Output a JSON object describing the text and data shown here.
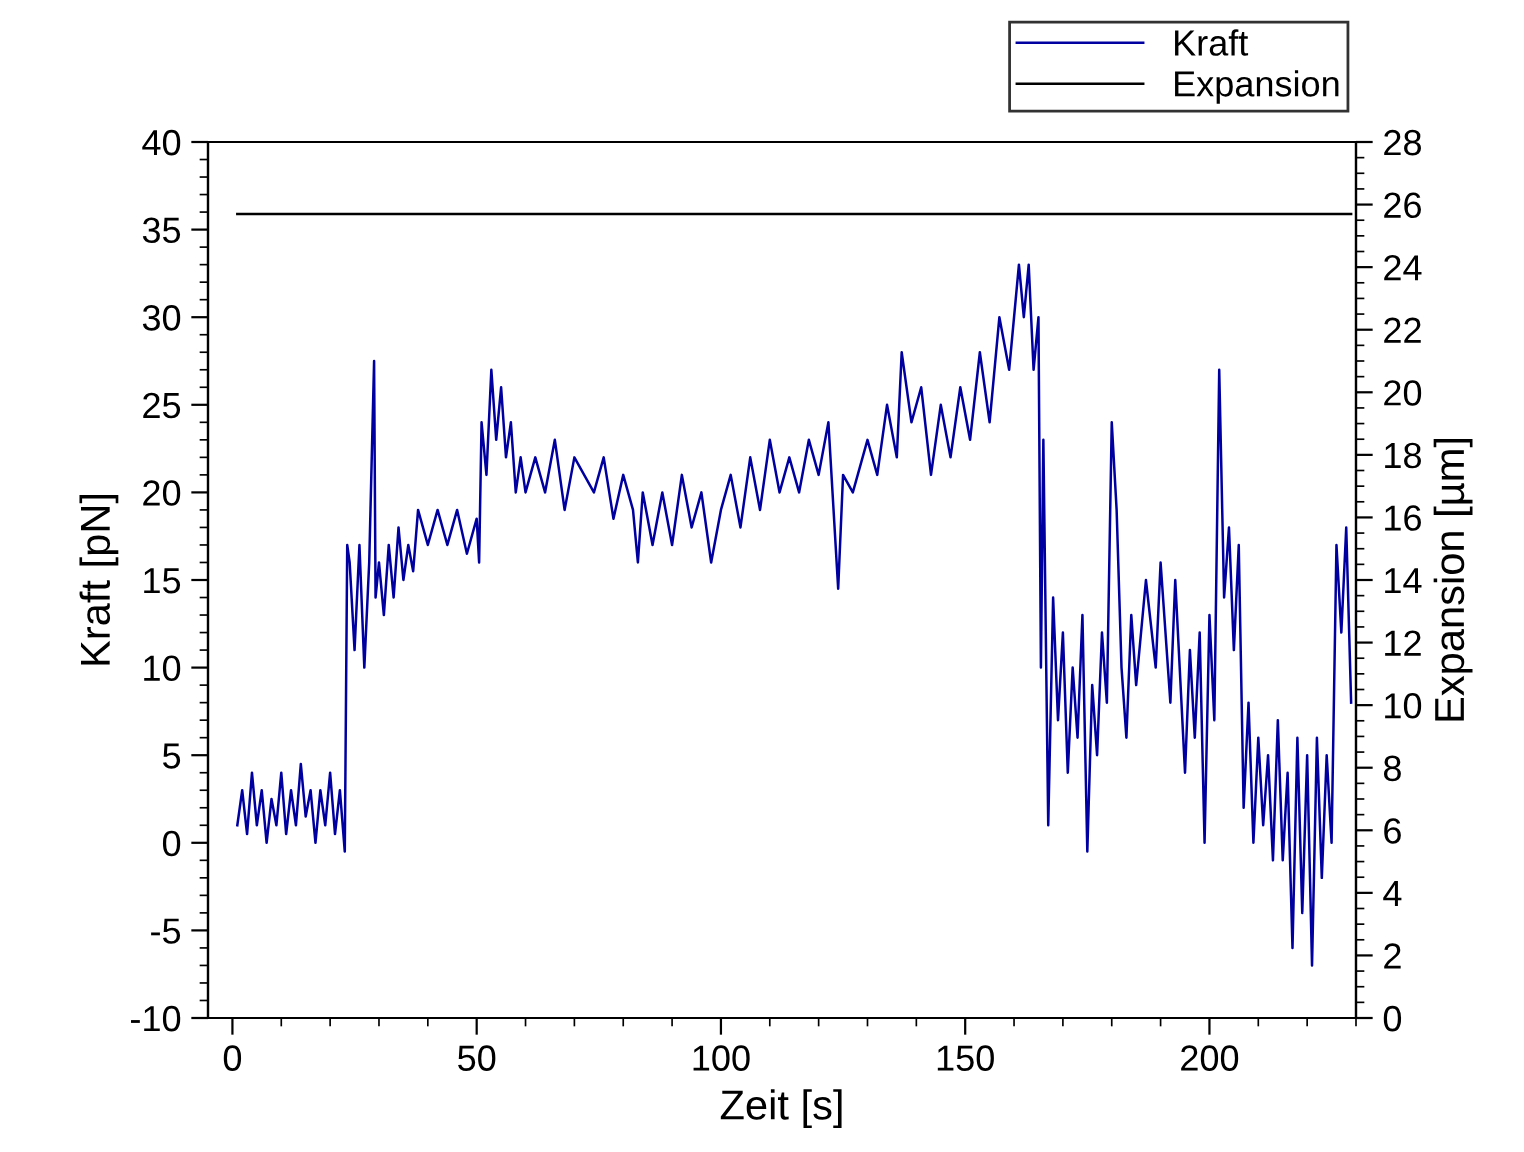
{
  "chart_data": {
    "type": "line",
    "xlabel": "Zeit [s]",
    "ylabel": "Kraft [pN]",
    "y2label": "Expansion [µm]",
    "xlim": [
      -5,
      230
    ],
    "xticks": [
      0,
      50,
      100,
      150,
      200
    ],
    "ylim": [
      -10,
      40
    ],
    "yticks": [
      -10,
      -5,
      0,
      5,
      10,
      15,
      20,
      25,
      30,
      35,
      40
    ],
    "y2lim": [
      0,
      28
    ],
    "y2ticks": [
      0,
      2,
      4,
      6,
      8,
      10,
      12,
      14,
      16,
      18,
      20,
      22,
      24,
      26,
      28
    ],
    "legend": "top right",
    "grid": false,
    "series": [
      {
        "name": "Kraft",
        "color": "#0000a0",
        "x": [
          1,
          2,
          3,
          4,
          5,
          6,
          7,
          8,
          9,
          10,
          11,
          12,
          13,
          14,
          15,
          16,
          17,
          18,
          19,
          20,
          21,
          22,
          23,
          23.5,
          24,
          25,
          26,
          27,
          28,
          29,
          29.3,
          30,
          31,
          32,
          33,
          34,
          35,
          36,
          37,
          38,
          40,
          42,
          44,
          46,
          48,
          50,
          50.5,
          51,
          52,
          53,
          54,
          55,
          56,
          57,
          58,
          59,
          60,
          62,
          64,
          66,
          68,
          70,
          72,
          74,
          76,
          78,
          80,
          82,
          83,
          84,
          86,
          88,
          90,
          92,
          94,
          96,
          98,
          100,
          102,
          104,
          106,
          108,
          110,
          112,
          114,
          116,
          118,
          120,
          122,
          124,
          125,
          127,
          130,
          132,
          134,
          136,
          137,
          139,
          141,
          143,
          145,
          147,
          149,
          151,
          153,
          155,
          157,
          159,
          161,
          162,
          163,
          164,
          165,
          165.5,
          166,
          167,
          168,
          169,
          170,
          171,
          172,
          173,
          174,
          175,
          176,
          177,
          178,
          179,
          180,
          181,
          182,
          183,
          184,
          185,
          187,
          189,
          190,
          192,
          193,
          195,
          196,
          197,
          198,
          199,
          200,
          201,
          202,
          203,
          204,
          205,
          206,
          207,
          208,
          209,
          210,
          211,
          212,
          213,
          214,
          215,
          216,
          217,
          218,
          219,
          220,
          221,
          222,
          223,
          224,
          225,
          226,
          227,
          228,
          229
        ],
        "values": [
          1,
          3,
          0.5,
          4,
          1,
          3,
          0,
          2.5,
          1,
          4,
          0.5,
          3,
          1,
          4.5,
          1.5,
          3,
          0,
          3,
          1,
          4,
          0.5,
          3,
          -0.5,
          17,
          16,
          11,
          17,
          10,
          16,
          27.5,
          14,
          16,
          13,
          17,
          14,
          18,
          15,
          17,
          15.5,
          19,
          17,
          19,
          17,
          19,
          16.5,
          18.5,
          16,
          24,
          21,
          27,
          23,
          26,
          22,
          24,
          20,
          22,
          20,
          22,
          20,
          23,
          19,
          22,
          21,
          20,
          22,
          18.5,
          21,
          19,
          16,
          20,
          17,
          20,
          17,
          21,
          18,
          20,
          16,
          19,
          21,
          18,
          22,
          19,
          23,
          20,
          22,
          20,
          23,
          21,
          24,
          14.5,
          21,
          20,
          23,
          21,
          25,
          22,
          28,
          24,
          26,
          21,
          25,
          22,
          26,
          23,
          28,
          24,
          30,
          27,
          33,
          30,
          33,
          27,
          30,
          10,
          23,
          1,
          14,
          7,
          12,
          4,
          10,
          6,
          13,
          -0.5,
          9,
          5,
          12,
          8,
          24,
          19,
          10,
          6,
          13,
          9,
          15,
          10,
          16,
          8,
          15,
          4,
          11,
          6,
          12,
          0,
          13,
          7,
          27,
          14,
          18,
          11,
          17,
          2,
          8,
          0,
          6,
          1,
          5,
          -1,
          7,
          -1,
          4,
          -6,
          6,
          -4,
          5,
          -7,
          6,
          -2,
          5,
          0,
          17,
          12,
          18,
          8
        ]
      },
      {
        "name": "Expansion",
        "color": "#000000",
        "axis": "y2",
        "x": [
          1,
          229
        ],
        "values": [
          25.7,
          25.7
        ]
      }
    ]
  }
}
